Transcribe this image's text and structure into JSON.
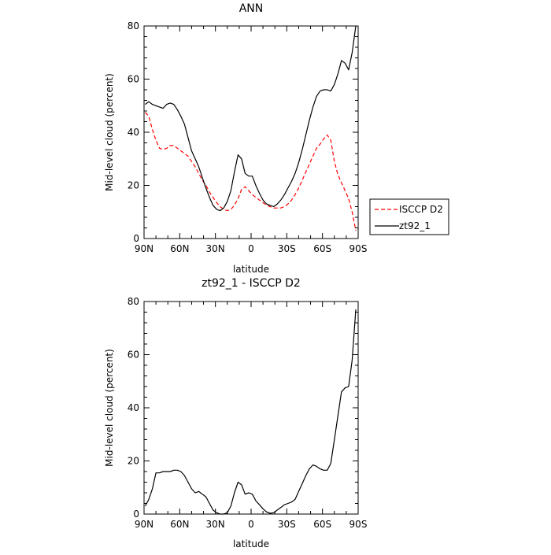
{
  "chart_data": [
    {
      "type": "line",
      "title": "ANN",
      "xlabel": "latitude",
      "ylabel": "Mid-level cloud (percent)",
      "xlim": [
        90,
        -90
      ],
      "ylim": [
        0,
        80
      ],
      "xticks": [
        {
          "value": 90,
          "label": "90N"
        },
        {
          "value": 60,
          "label": "60N"
        },
        {
          "value": 30,
          "label": "30N"
        },
        {
          "value": 0,
          "label": "0"
        },
        {
          "value": -30,
          "label": "30S"
        },
        {
          "value": -60,
          "label": "60S"
        },
        {
          "value": -90,
          "label": "90S"
        }
      ],
      "yticks": [
        0,
        20,
        40,
        60,
        80
      ],
      "legend": "right-outside",
      "grid": false,
      "series": [
        {
          "name": "ISCCP D2",
          "color": "#ff0000",
          "dash": "dashed",
          "x": [
            89,
            86,
            83,
            80,
            77,
            74,
            71,
            68,
            65,
            62,
            59,
            56,
            53,
            50,
            47,
            44,
            41,
            38,
            35,
            32,
            29,
            26,
            23,
            20,
            17,
            14,
            11,
            8,
            5,
            2,
            -1,
            -4,
            -7,
            -10,
            -13,
            -16,
            -19,
            -22,
            -25,
            -28,
            -31,
            -34,
            -37,
            -40,
            -43,
            -46,
            -49,
            -52,
            -55,
            -58,
            -61,
            -64,
            -67,
            -70,
            -73,
            -76,
            -79,
            -82,
            -85,
            -88
          ],
          "y": [
            47.5,
            46,
            41,
            37,
            34,
            33.5,
            34,
            35,
            35,
            34,
            33,
            32,
            31,
            29,
            27,
            24.5,
            22,
            20,
            17.5,
            15.5,
            13.5,
            12,
            11,
            10.5,
            11,
            12.5,
            15,
            18.5,
            19.5,
            18,
            16.5,
            15.5,
            14.5,
            13.5,
            12.5,
            12,
            11.5,
            11.5,
            11.5,
            12,
            13,
            14.5,
            16.5,
            19,
            22,
            25,
            28,
            31,
            34,
            35.5,
            37.5,
            39,
            37,
            29,
            24,
            21,
            18,
            15,
            10,
            3
          ]
        },
        {
          "name": "zt92_1",
          "color": "#000000",
          "dash": "solid",
          "x": [
            89,
            86,
            83,
            80,
            77,
            74,
            71,
            68,
            65,
            62,
            59,
            56,
            53,
            50,
            47,
            44,
            41,
            38,
            35,
            32,
            29,
            26,
            23,
            20,
            17,
            14,
            11,
            8,
            5,
            2,
            -1,
            -4,
            -7,
            -10,
            -13,
            -16,
            -19,
            -22,
            -25,
            -28,
            -31,
            -34,
            -37,
            -40,
            -43,
            -46,
            -49,
            -52,
            -55,
            -58,
            -61,
            -64,
            -67,
            -70,
            -73,
            -76,
            -79,
            -82,
            -85,
            -88
          ],
          "y": [
            50.5,
            51.5,
            50.5,
            50,
            49.5,
            49,
            50.5,
            51,
            50.5,
            48.5,
            46,
            43,
            38,
            33,
            30,
            27,
            23,
            19,
            15.5,
            12.5,
            11,
            10.5,
            11.5,
            14,
            18,
            25,
            31.5,
            30,
            24.5,
            23.5,
            23.5,
            20,
            17,
            14.5,
            13,
            12.5,
            12,
            13,
            14.5,
            16.5,
            19,
            21.5,
            24.5,
            28.5,
            33.5,
            39,
            44.5,
            49.5,
            53.5,
            55.5,
            56,
            56,
            55.5,
            58,
            62,
            67,
            66,
            63.5,
            70,
            80
          ]
        }
      ]
    },
    {
      "type": "line",
      "title": "zt92_1 - ISCCP D2",
      "xlabel": "latitude",
      "ylabel": "Mid-level cloud (percent)",
      "xlim": [
        90,
        -90
      ],
      "ylim": [
        0,
        80
      ],
      "xticks": [
        {
          "value": 90,
          "label": "90N"
        },
        {
          "value": 60,
          "label": "60N"
        },
        {
          "value": 30,
          "label": "30N"
        },
        {
          "value": 0,
          "label": "0"
        },
        {
          "value": -30,
          "label": "30S"
        },
        {
          "value": -60,
          "label": "60S"
        },
        {
          "value": -90,
          "label": "90S"
        }
      ],
      "yticks": [
        0,
        20,
        40,
        60,
        80
      ],
      "grid": false,
      "series": [
        {
          "color": "#000000",
          "dash": "solid",
          "x": [
            89,
            86,
            83,
            80,
            77,
            74,
            71,
            68,
            65,
            62,
            59,
            56,
            53,
            50,
            47,
            44,
            41,
            38,
            35,
            32,
            29,
            26,
            23,
            20,
            17,
            14,
            11,
            8,
            5,
            2,
            -1,
            -4,
            -7,
            -10,
            -13,
            -16,
            -19,
            -22,
            -25,
            -28,
            -31,
            -34,
            -37,
            -40,
            -43,
            -46,
            -49,
            -52,
            -55,
            -58,
            -61,
            -64,
            -67,
            -70,
            -73,
            -76,
            -79,
            -82,
            -85,
            -88
          ],
          "y": [
            3,
            5.5,
            9.5,
            15.5,
            15.5,
            16,
            16,
            16,
            16.5,
            16.5,
            16,
            14.5,
            12,
            9.5,
            8,
            8.5,
            7.5,
            6.5,
            4,
            1.5,
            0.5,
            0,
            0,
            0.5,
            3,
            8,
            12,
            11,
            7.5,
            8,
            7.5,
            5,
            3.5,
            2,
            0.8,
            0.3,
            0.5,
            1.5,
            2.5,
            3.5,
            4,
            4.5,
            5.5,
            8.5,
            11.5,
            14.5,
            17,
            18.5,
            18,
            17,
            16.5,
            16.5,
            19,
            28,
            37,
            46,
            47.5,
            48,
            58,
            77
          ]
        }
      ]
    }
  ]
}
